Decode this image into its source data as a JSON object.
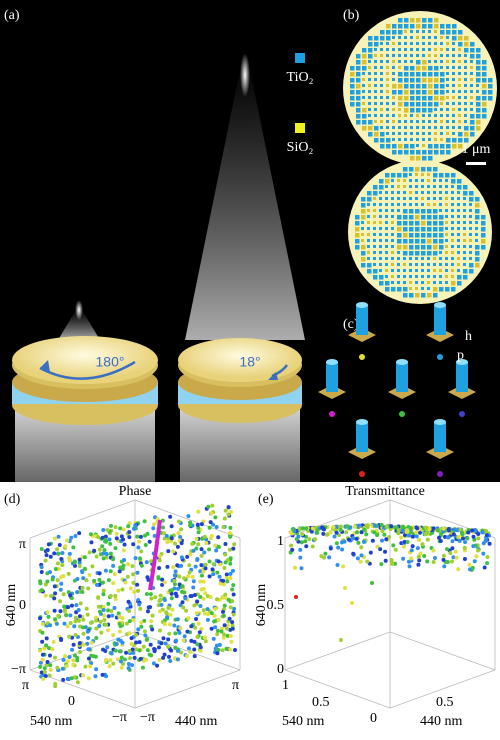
{
  "panels": {
    "a": {
      "label": "(a)",
      "legend": [
        "TiO₂",
        "SiO₂"
      ],
      "rotations": [
        "180°",
        "18°"
      ]
    },
    "b": {
      "label": "(b)",
      "scale_bar": "1 μm"
    },
    "c": {
      "label": "(c)",
      "dims": [
        "h",
        "p"
      ]
    },
    "d": {
      "label": "(d)",
      "title": "Phase",
      "vertical_axis": "640 nm",
      "left_axis": "540 nm",
      "right_axis": "440 nm",
      "vertical_ticks": [
        "π",
        "0",
        "−π"
      ],
      "left_ticks": [
        "π",
        "0",
        "−π"
      ],
      "right_ticks": [
        "−π",
        "π"
      ]
    },
    "e": {
      "label": "(e)",
      "title": "Transmittance",
      "vertical_axis": "640 nm",
      "left_axis": "540 nm",
      "right_axis": "440 nm",
      "vertical_ticks": [
        "1",
        "0.5",
        "0"
      ],
      "left_ticks": [
        "1",
        "0.5",
        "0"
      ],
      "right_ticks": [
        "0.5"
      ]
    }
  }
}
